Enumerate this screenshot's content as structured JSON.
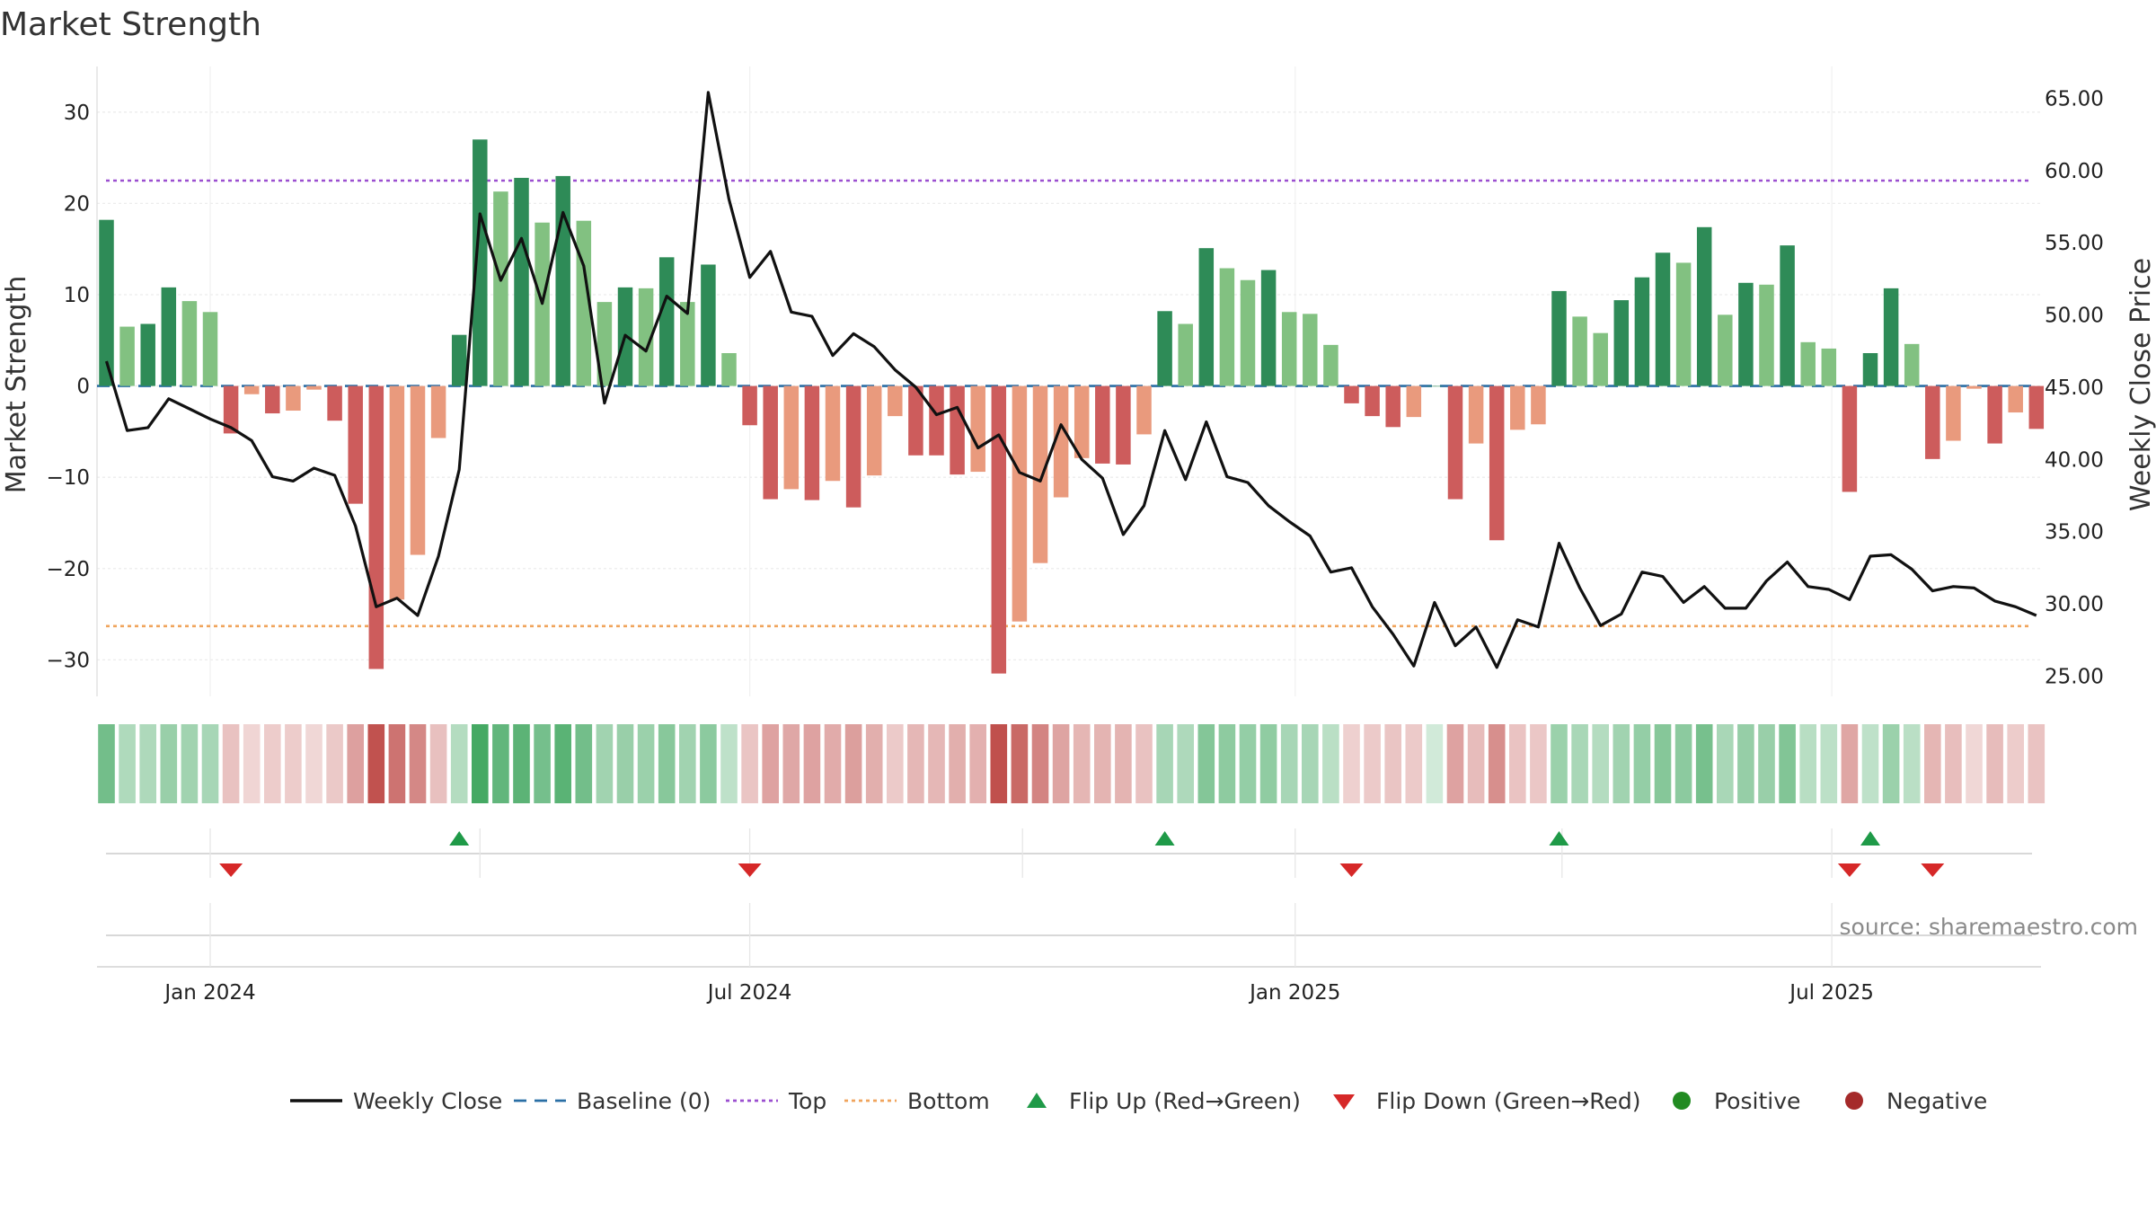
{
  "chart_data": {
    "type": "bar",
    "title": "Market Strength",
    "ylabel_left": "Market Strength",
    "ylabel_right": "Weekly Close Price",
    "source": "source: sharemaestro.com",
    "grid": true,
    "legend_placement": "bottom",
    "x_start": "2023-11-27",
    "x_ticks": [
      {
        "date": "2024-01-01",
        "label": "Jan 2024"
      },
      {
        "date": "2024-07-01",
        "label": "Jul 2024"
      },
      {
        "date": "2025-01-01",
        "label": "Jan 2025"
      },
      {
        "date": "2025-07-01",
        "label": "Jul 2025"
      }
    ],
    "quarter_dates": [
      "2024-04-01",
      "2024-10-01",
      "2025-04-01"
    ],
    "y_left": {
      "lim": [
        -34,
        35
      ],
      "ticks": [
        30,
        20,
        10,
        0,
        -10,
        -20,
        -30
      ],
      "tick_labels": [
        "30",
        "20",
        "10",
        "0",
        "−10",
        "−20",
        "−30"
      ]
    },
    "y_right": {
      "lim": [
        23.6,
        67.2
      ],
      "ticks": [
        65,
        60,
        55,
        50,
        45,
        40,
        35,
        30,
        25
      ],
      "tick_labels": [
        "65.00",
        "60.00",
        "55.00",
        "50.00",
        "45.00",
        "40.00",
        "35.00",
        "30.00",
        "25.00"
      ]
    },
    "baseline": 0,
    "top": 22.5,
    "bottom": -26.3,
    "strength": [
      18.2,
      6.5,
      6.8,
      10.8,
      9.3,
      8.1,
      -5.2,
      -0.9,
      -3.0,
      -2.7,
      -0.4,
      -3.8,
      -12.9,
      -31.0,
      -23.4,
      -18.5,
      -5.7,
      5.6,
      27.0,
      21.3,
      22.8,
      17.9,
      23.0,
      18.1,
      9.2,
      10.8,
      10.7,
      14.1,
      9.2,
      13.3,
      3.6,
      -4.3,
      -12.4,
      -11.3,
      -12.5,
      -10.4,
      -13.3,
      -9.8,
      -3.3,
      -7.6,
      -7.6,
      -9.7,
      -9.4,
      -31.5,
      -25.8,
      -19.4,
      -12.2,
      -7.9,
      -8.5,
      -8.6,
      -5.3,
      8.2,
      6.8,
      15.1,
      12.9,
      11.6,
      12.7,
      8.1,
      7.9,
      4.5,
      -1.9,
      -3.3,
      -4.5,
      -3.4,
      0,
      -12.4,
      -6.3,
      -16.9,
      -4.8,
      -4.2,
      10.4,
      7.6,
      5.8,
      9.4,
      11.9,
      14.6,
      13.5,
      17.4,
      7.8,
      11.3,
      11.1,
      15.4,
      4.8,
      4.1,
      -11.6,
      3.6,
      10.7,
      4.6,
      -8.0,
      -6.0,
      -0.3,
      -6.3,
      -2.9,
      -4.7
    ],
    "weekly_close": [
      46.8,
      42.0,
      42.2,
      44.2,
      43.5,
      42.8,
      42.2,
      41.3,
      38.8,
      38.5,
      39.4,
      38.9,
      35.4,
      29.8,
      30.4,
      29.2,
      33.3,
      39.3,
      57.0,
      52.4,
      55.3,
      50.8,
      57.1,
      53.4,
      43.9,
      48.6,
      47.5,
      51.3,
      50.1,
      65.4,
      58.0,
      52.6,
      54.4,
      50.2,
      49.9,
      47.2,
      48.7,
      47.8,
      46.2,
      45.0,
      43.1,
      43.6,
      40.8,
      41.7,
      39.1,
      38.5,
      42.4,
      40.0,
      38.7,
      34.8,
      36.8,
      42.0,
      38.6,
      42.6,
      38.8,
      38.4,
      36.8,
      35.7,
      34.7,
      32.2,
      32.5,
      29.8,
      27.9,
      25.7,
      30.1,
      27.1,
      28.4,
      25.6,
      28.9,
      28.4,
      34.2,
      31.1,
      28.5,
      29.3,
      32.2,
      31.9,
      30.1,
      31.2,
      29.7,
      29.7,
      31.6,
      32.9,
      31.2,
      31.0,
      30.3,
      33.3,
      33.4,
      32.4,
      30.9,
      31.2,
      31.1,
      30.2,
      29.8,
      29.2
    ],
    "flip_up_weeks": [
      17,
      51,
      70,
      85
    ],
    "flip_down_weeks": [
      6,
      31,
      60,
      84,
      88
    ],
    "colors": {
      "bar_pos_strong": "#2e8b57",
      "bar_pos_weak": "#82c181",
      "bar_neg_strong": "#cd5c5c",
      "bar_neg_weak": "#e99a7d",
      "close_line": "#111111",
      "baseline": "#2a6fa5",
      "top_line": "#9b4fd0",
      "bottom_line": "#f0a45c",
      "flip_up": "#1f9a48",
      "flip_down": "#d62828",
      "positive": "#228b22",
      "negative": "#a52a2a",
      "heat_pos": "#2e9e50",
      "heat_neg": "#c0504d"
    },
    "legend": [
      {
        "label": "Weekly Close",
        "kind": "line",
        "key": "close_line"
      },
      {
        "label": "Baseline (0)",
        "kind": "dash",
        "key": "baseline"
      },
      {
        "label": "Top",
        "kind": "dot",
        "key": "top_line"
      },
      {
        "label": "Bottom",
        "kind": "dot",
        "key": "bottom_line"
      },
      {
        "label": "Flip Up (Red→Green)",
        "kind": "tri-up",
        "key": "flip_up"
      },
      {
        "label": "Flip Down (Green→Red)",
        "kind": "tri-down",
        "key": "flip_down"
      },
      {
        "label": "Positive",
        "kind": "circle",
        "key": "positive"
      },
      {
        "label": "Negative",
        "kind": "circle",
        "key": "negative"
      }
    ]
  }
}
